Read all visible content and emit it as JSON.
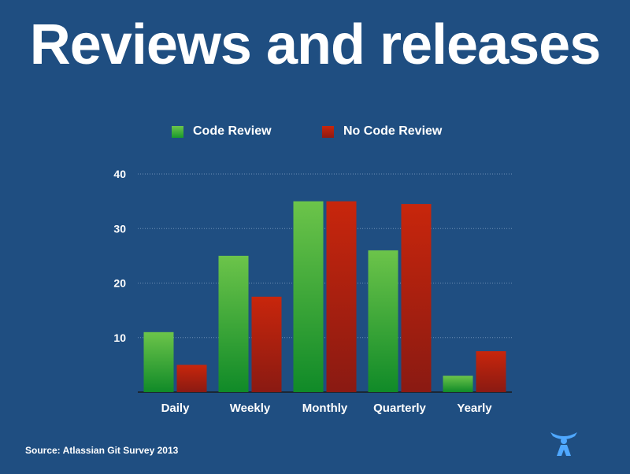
{
  "title": "Reviews and releases",
  "source": "Source: Atlassian Git Survey 2013",
  "colors": {
    "background": "#1f4e81",
    "code_review": "#3aa835",
    "no_code_review": "#b32410",
    "logo": "#4fa8ff"
  },
  "logo_icon": "atlassian-logo-icon",
  "chart_data": {
    "type": "bar",
    "categories": [
      "Daily",
      "Weekly",
      "Monthly",
      "Quarterly",
      "Yearly"
    ],
    "series": [
      {
        "name": "Code Review",
        "values": [
          11,
          25,
          35,
          26,
          3
        ]
      },
      {
        "name": "No Code Review",
        "values": [
          5,
          17.5,
          35,
          34.5,
          7.5
        ]
      }
    ],
    "yticks": [
      10,
      20,
      30,
      40
    ],
    "ylim": [
      0,
      40
    ],
    "grid": true,
    "legend_position": "top"
  }
}
